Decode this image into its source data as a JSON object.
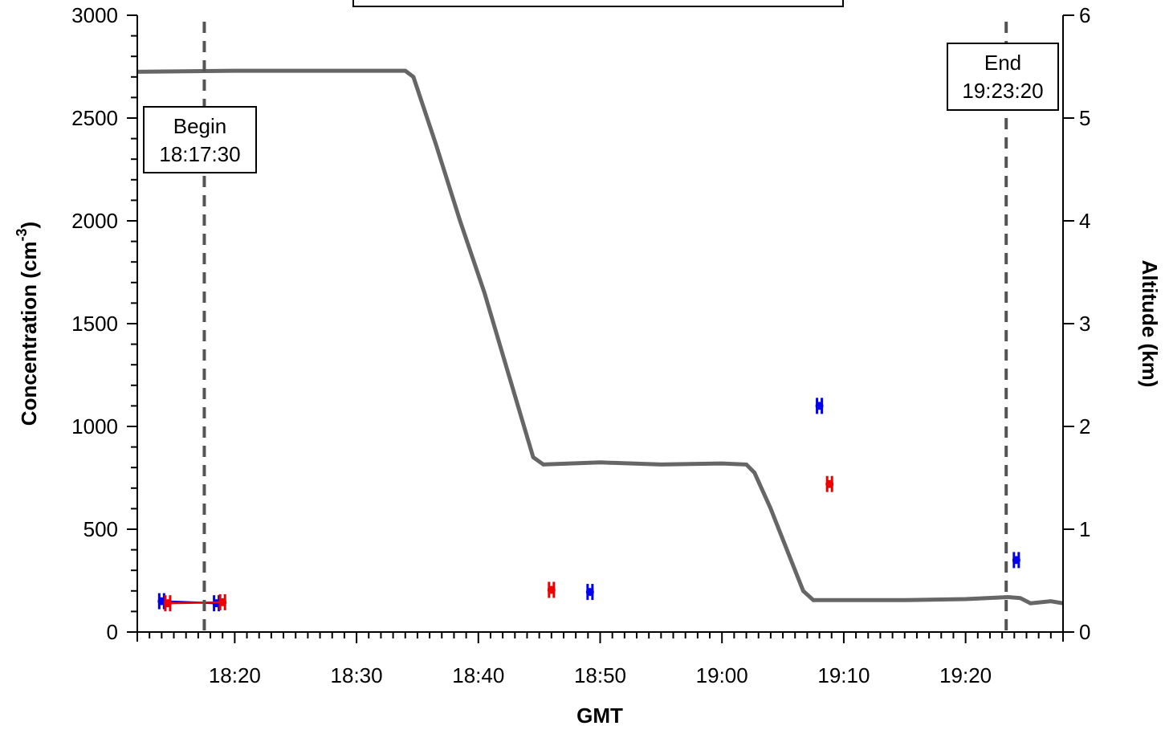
{
  "chart_data": {
    "type": "scatter",
    "xlabel": "GMT",
    "ylabel_left": {
      "text": "Concentration (cm",
      "sup": "-3",
      "suffix": ")"
    },
    "ylabel_right": "Altitude  (km)",
    "xlim": [
      "18:12",
      "19:28"
    ],
    "ylim_left": [
      0,
      3000
    ],
    "ylim_right": [
      0,
      6
    ],
    "x_ticks": [
      "18:20",
      "18:30",
      "18:40",
      "18:50",
      "19:00",
      "19:10",
      "19:20"
    ],
    "y_ticks_left": [
      0,
      500,
      1000,
      1500,
      2000,
      2500,
      3000
    ],
    "y_ticks_right": [
      0,
      1,
      2,
      3,
      4,
      5,
      6
    ],
    "grid": false,
    "altitude_color": "#666666",
    "altitude_km": [
      [
        "18:12:00",
        5.45
      ],
      [
        "18:20:00",
        5.46
      ],
      [
        "18:28:00",
        5.46
      ],
      [
        "18:34:00",
        5.46
      ],
      [
        "18:34:40",
        5.4
      ],
      [
        "18:36:30",
        4.75
      ],
      [
        "18:38:30",
        4.0
      ],
      [
        "18:40:30",
        3.3
      ],
      [
        "18:42:30",
        2.5
      ],
      [
        "18:44:30",
        1.7
      ],
      [
        "18:45:20",
        1.63
      ],
      [
        "18:50:00",
        1.65
      ],
      [
        "18:55:00",
        1.63
      ],
      [
        "19:00:00",
        1.64
      ],
      [
        "19:02:00",
        1.63
      ],
      [
        "19:02:40",
        1.55
      ],
      [
        "19:04:00",
        1.2
      ],
      [
        "19:05:20",
        0.8
      ],
      [
        "19:06:40",
        0.4
      ],
      [
        "19:07:30",
        0.31
      ],
      [
        "19:15:00",
        0.31
      ],
      [
        "19:20:00",
        0.32
      ],
      [
        "19:23:30",
        0.34
      ],
      [
        "19:24:30",
        0.33
      ],
      [
        "19:25:20",
        0.28
      ],
      [
        "19:27:00",
        0.3
      ],
      [
        "19:28:00",
        0.28
      ]
    ],
    "series": [
      {
        "name": "",
        "color": "#0000ee",
        "points": [
          [
            "18:14:00",
            150
          ],
          [
            "18:18:30",
            140
          ],
          [
            "18:49:10",
            195
          ],
          [
            "19:08:00",
            1100
          ],
          [
            "19:24:10",
            350
          ]
        ],
        "line_until": 1
      },
      {
        "name": "",
        "color": "#ee0000",
        "points": [
          [
            "18:14:30",
            140
          ],
          [
            "18:19:00",
            145
          ],
          [
            "18:46:00",
            205
          ],
          [
            "19:08:50",
            720
          ]
        ],
        "line_until": 1
      }
    ],
    "events": [
      {
        "label": "Begin",
        "time": "18:17:30",
        "color": "#555555"
      },
      {
        "label": "End",
        "time": "19:23:20",
        "color": "#555555"
      }
    ]
  }
}
